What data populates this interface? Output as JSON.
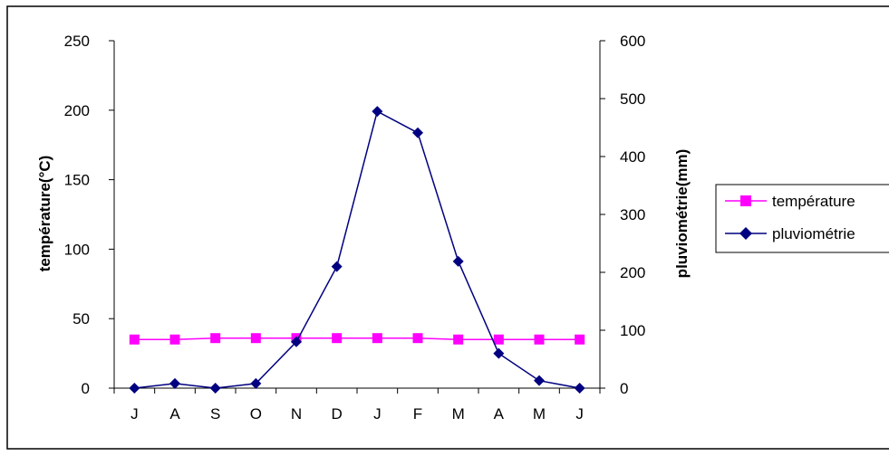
{
  "chart_data": {
    "type": "line",
    "categories": [
      "J",
      "A",
      "S",
      "O",
      "N",
      "D",
      "J",
      "F",
      "M",
      "A",
      "M",
      "J"
    ],
    "series": [
      {
        "name": "température",
        "axis": "left",
        "color": "#ff00ff",
        "marker": "square",
        "values": [
          35,
          35,
          36,
          36,
          36,
          36,
          36,
          36,
          35,
          35,
          35,
          35
        ]
      },
      {
        "name": "pluviométrie",
        "axis": "right",
        "color": "#000080",
        "marker": "diamond",
        "values": [
          0,
          8,
          0,
          8,
          80,
          210,
          478,
          441,
          219,
          60,
          13,
          0
        ]
      }
    ],
    "ylabel": "température(°C)",
    "y2label": "pluviométrie(mm)",
    "ylim": [
      0,
      250
    ],
    "y2lim": [
      0,
      600
    ],
    "yticks": [
      "0",
      "50",
      "100",
      "150",
      "200",
      "250"
    ],
    "y2ticks": [
      "0",
      "100",
      "200",
      "300",
      "400",
      "500",
      "600"
    ],
    "grid": false,
    "legend_position": "right"
  }
}
